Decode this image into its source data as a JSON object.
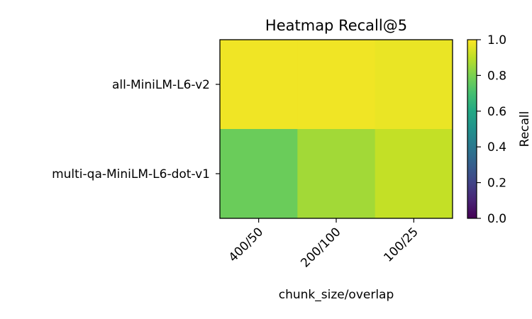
{
  "chart_data": {
    "type": "heatmap",
    "title": "Heatmap Recall@5",
    "xlabel": "chunk_size/overlap",
    "ylabel": "",
    "x_categories": [
      "400/50",
      "200/100",
      "100/25"
    ],
    "y_categories": [
      "all-MiniLM-L6-v2",
      "multi-qa-MiniLM-L6-dot-v1"
    ],
    "values": [
      [
        0.98,
        0.98,
        0.97
      ],
      [
        0.77,
        0.86,
        0.91
      ]
    ],
    "colorbar": {
      "label": "Recall",
      "range": [
        0.0,
        1.0
      ],
      "ticks": [
        "0.0",
        "0.2",
        "0.4",
        "0.6",
        "0.8",
        "1.0"
      ],
      "colormap": "viridis"
    },
    "grid": false
  }
}
